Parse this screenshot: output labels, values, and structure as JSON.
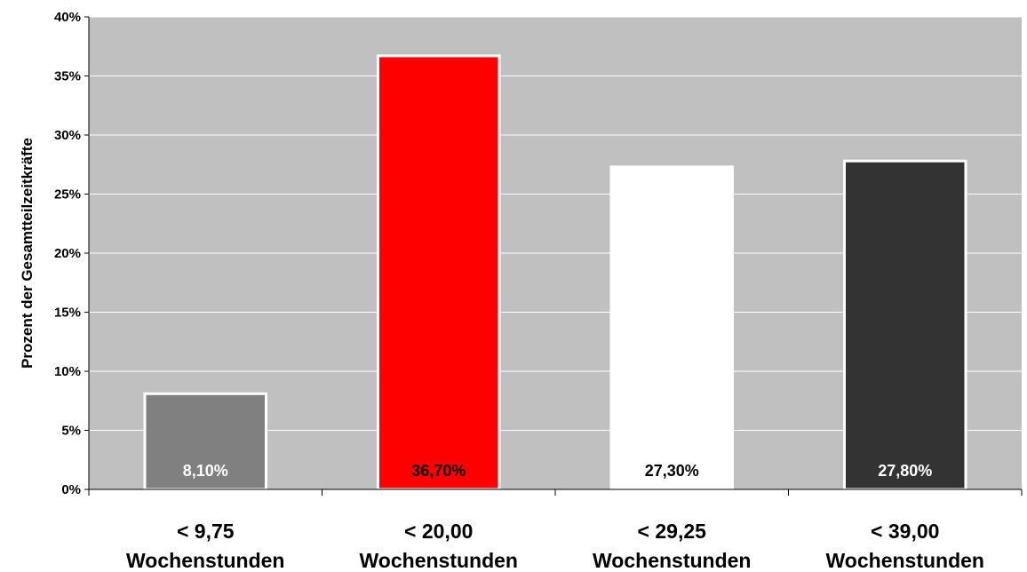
{
  "chart_data": {
    "type": "bar",
    "title": "",
    "xlabel": "",
    "ylabel": "Prozent der Gesamtteilzeitkräfte",
    "ylim": [
      0,
      40
    ],
    "yticks": [
      0,
      5,
      10,
      15,
      20,
      25,
      30,
      35,
      40
    ],
    "ytick_labels": [
      "0%",
      "5%",
      "10%",
      "15%",
      "20%",
      "25%",
      "30%",
      "35%",
      "40%"
    ],
    "grid": true,
    "legend": "none",
    "categories": [
      [
        "< 9,75",
        "Wochenstunden"
      ],
      [
        "< 20,00",
        "Wochenstunden"
      ],
      [
        "< 29,25",
        "Wochenstunden"
      ],
      [
        "< 39,00",
        "Wochenstunden"
      ]
    ],
    "values": [
      8.1,
      36.7,
      27.3,
      27.8
    ],
    "data_labels": [
      "8,10%",
      "36,70%",
      "27,30%",
      "27,80%"
    ],
    "bar_colors": [
      "#808080",
      "#ff0000",
      "#ffffff",
      "#333333"
    ],
    "label_colors": [
      "#ffffff",
      "#000000",
      "#000000",
      "#ffffff"
    ],
    "plot_background": "#c0c0c0",
    "gridline_color": "#ffffff",
    "bar_outline_color": "#ffffff"
  }
}
